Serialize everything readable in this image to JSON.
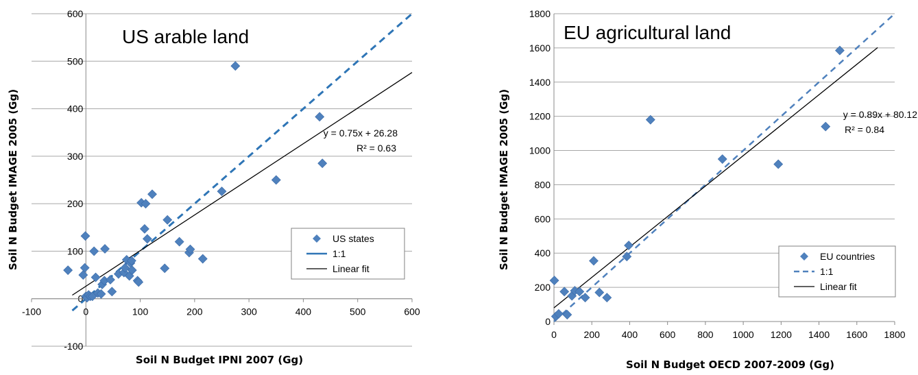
{
  "chart_data": [
    {
      "type": "scatter",
      "title": "US arable land",
      "xlabel": "Soil N Budget IPNI 2007 (Gg)",
      "ylabel": "Soil N Budget IMAGE 2005 (Gg)",
      "xlim": [
        -100,
        600
      ],
      "ylim": [
        -100,
        600
      ],
      "xticks": [
        "-100",
        "0",
        "100",
        "200",
        "300",
        "400",
        "500",
        "600"
      ],
      "yticks": [
        "-100",
        "0",
        "100",
        "200",
        "300",
        "400",
        "500",
        "600"
      ],
      "grid": "horizontal",
      "legend_position": "right",
      "legend": [
        "US states",
        "1:1",
        "Linear fit"
      ],
      "fit_equation": "y = 0.75x + 26.28",
      "fit_r2": "R² = 0.63",
      "fit": {
        "slope": 0.75,
        "intercept": 26.28,
        "x_range": [
          -25,
          600
        ]
      },
      "one_to_one": {
        "x_range": [
          -25,
          600
        ]
      },
      "colors": {
        "marker": "#4F81BD",
        "one_to_one": "#2E75B6",
        "fit": "#000000"
      },
      "series": [
        {
          "name": "US states",
          "x": [
            -33,
            -5,
            -2,
            -1,
            0,
            2,
            5,
            8,
            12,
            15,
            18,
            22,
            28,
            30,
            34,
            35,
            45,
            48,
            60,
            70,
            72,
            75,
            80,
            82,
            84,
            85,
            95,
            97,
            102,
            108,
            110,
            113,
            122,
            145,
            150,
            172,
            190,
            192,
            215,
            250,
            275,
            350,
            430,
            435
          ],
          "y": [
            60,
            50,
            65,
            132,
            5,
            2,
            8,
            5,
            5,
            100,
            45,
            12,
            10,
            30,
            38,
            105,
            40,
            15,
            52,
            55,
            65,
            82,
            48,
            75,
            80,
            60,
            38,
            35,
            202,
            147,
            200,
            126,
            220,
            64,
            166,
            120,
            97,
            104,
            84,
            226,
            490,
            250,
            383,
            285
          ]
        }
      ]
    },
    {
      "type": "scatter",
      "title": "EU agricultural land",
      "xlabel": "Soil N Budget  OECD 2007-2009 (Gg)",
      "ylabel": "Soil N Budget IMAGE 2005 (Gg)",
      "xlim": [
        0,
        1800
      ],
      "ylim": [
        0,
        1800
      ],
      "xticks": [
        "0",
        "200",
        "400",
        "600",
        "800",
        "1000",
        "1200",
        "1400",
        "1600",
        "1800"
      ],
      "yticks": [
        "0",
        "200",
        "400",
        "600",
        "800",
        "1000",
        "1200",
        "1400",
        "1600",
        "1800"
      ],
      "grid": "horizontal",
      "legend_position": "bottom-right",
      "legend": [
        "EU countries",
        "1:1",
        "Linear fit"
      ],
      "fit_equation": "y = 0.89x + 80.12",
      "fit_r2": "R² = 0.84",
      "fit": {
        "slope": 0.89,
        "intercept": 80.12,
        "x_range": [
          0,
          1710
        ]
      },
      "one_to_one": {
        "x_range": [
          0,
          1800
        ]
      },
      "colors": {
        "marker": "#4F81BD",
        "one_to_one": "#4F81BD",
        "fit": "#000000"
      },
      "series": [
        {
          "name": "EU countries",
          "x": [
            2,
            10,
            25,
            55,
            70,
            95,
            110,
            135,
            165,
            210,
            240,
            280,
            385,
            395,
            510,
            890,
            1185,
            1435,
            1510
          ],
          "y": [
            240,
            30,
            45,
            175,
            40,
            150,
            180,
            175,
            140,
            355,
            170,
            140,
            380,
            445,
            1180,
            950,
            920,
            1140,
            1585
          ]
        }
      ]
    }
  ]
}
